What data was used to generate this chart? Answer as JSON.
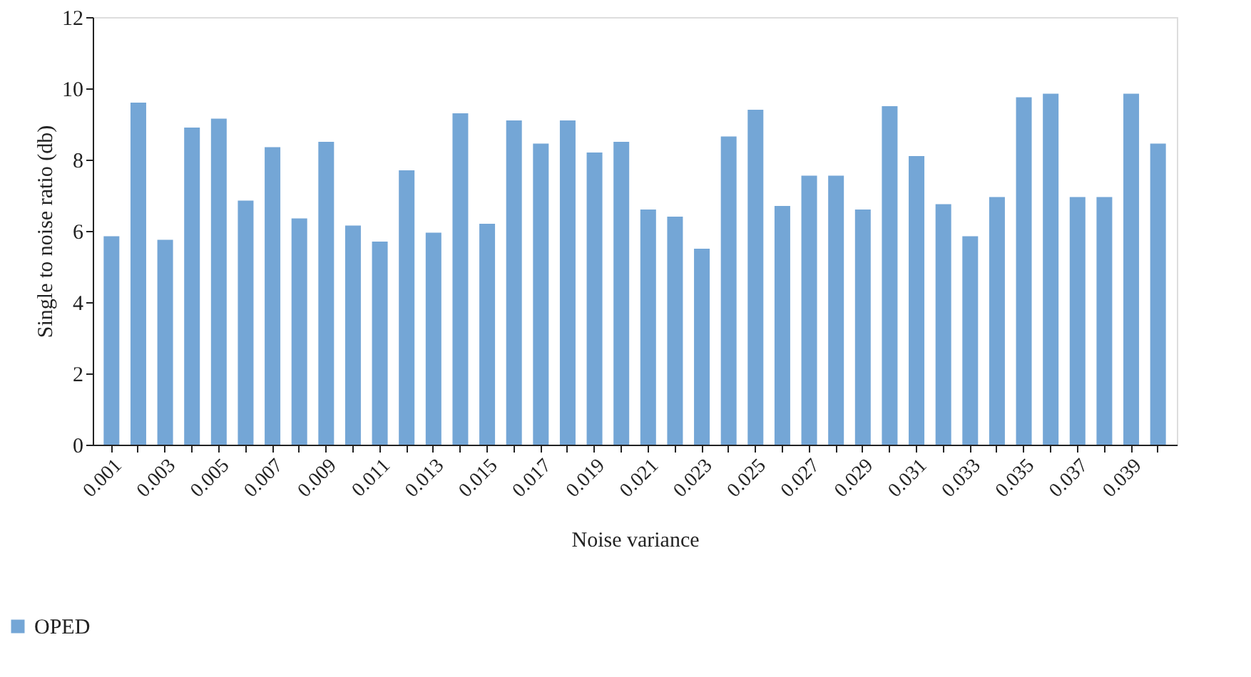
{
  "chart_data": {
    "type": "bar",
    "xlabel": "Noise variance",
    "ylabel": "Single to noise ratio (db)",
    "categories": [
      "0.001",
      null,
      "0.003",
      null,
      "0.005",
      null,
      "0.007",
      null,
      "0.009",
      null,
      "0.011",
      null,
      "0.013",
      null,
      "0.015",
      null,
      "0.017",
      null,
      "0.019",
      null,
      "0.021",
      null,
      "0.023",
      null,
      "0.025",
      null,
      "0.027",
      null,
      "0.029",
      null,
      "0.031",
      null,
      "0.033",
      null,
      "0.035",
      null,
      "0.037",
      null,
      "0.039",
      null
    ],
    "series": [
      {
        "name": "OPED",
        "color": "#74a6d6",
        "values": [
          5.85,
          9.6,
          5.75,
          8.9,
          9.15,
          6.85,
          8.35,
          6.35,
          8.5,
          6.15,
          5.7,
          7.7,
          5.95,
          9.3,
          6.2,
          9.1,
          8.45,
          9.1,
          8.2,
          8.5,
          6.6,
          6.4,
          5.5,
          8.65,
          9.4,
          6.7,
          7.55,
          7.55,
          6.6,
          9.5,
          8.1,
          6.75,
          5.85,
          6.95,
          9.75,
          9.85,
          6.95,
          6.95,
          9.85,
          8.45
        ]
      }
    ],
    "ylim": [
      0,
      12
    ],
    "yticks": [
      0,
      2,
      4,
      6,
      8,
      10,
      12
    ],
    "grid": false,
    "legend": "bottom left"
  }
}
